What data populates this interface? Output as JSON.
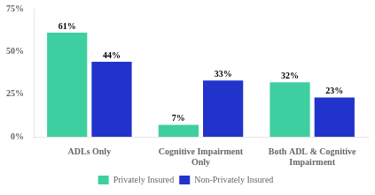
{
  "chart_data": {
    "type": "bar",
    "categories": [
      "ADLs Only",
      "Cognitive Impairment\nOnly",
      "Both ADL & Cognitive\nImpairment"
    ],
    "series": [
      {
        "name": "Privately Insured",
        "color": "#3ecfa0",
        "values": [
          61,
          7,
          32
        ],
        "value_labels": [
          "61%",
          "7%",
          "32%"
        ]
      },
      {
        "name": "Non-Privately Insured",
        "color": "#2233cc",
        "values": [
          44,
          33,
          23
        ],
        "value_labels": [
          "44%",
          "33%",
          "23%"
        ]
      }
    ],
    "ylim": [
      0,
      75
    ],
    "yticks": [
      {
        "value": 0,
        "label": "0%"
      },
      {
        "value": 25,
        "label": "25%"
      },
      {
        "value": 50,
        "label": "50%"
      },
      {
        "value": 75,
        "label": "75%"
      }
    ],
    "grid": false,
    "legend": "bottom",
    "data_labels": true
  }
}
